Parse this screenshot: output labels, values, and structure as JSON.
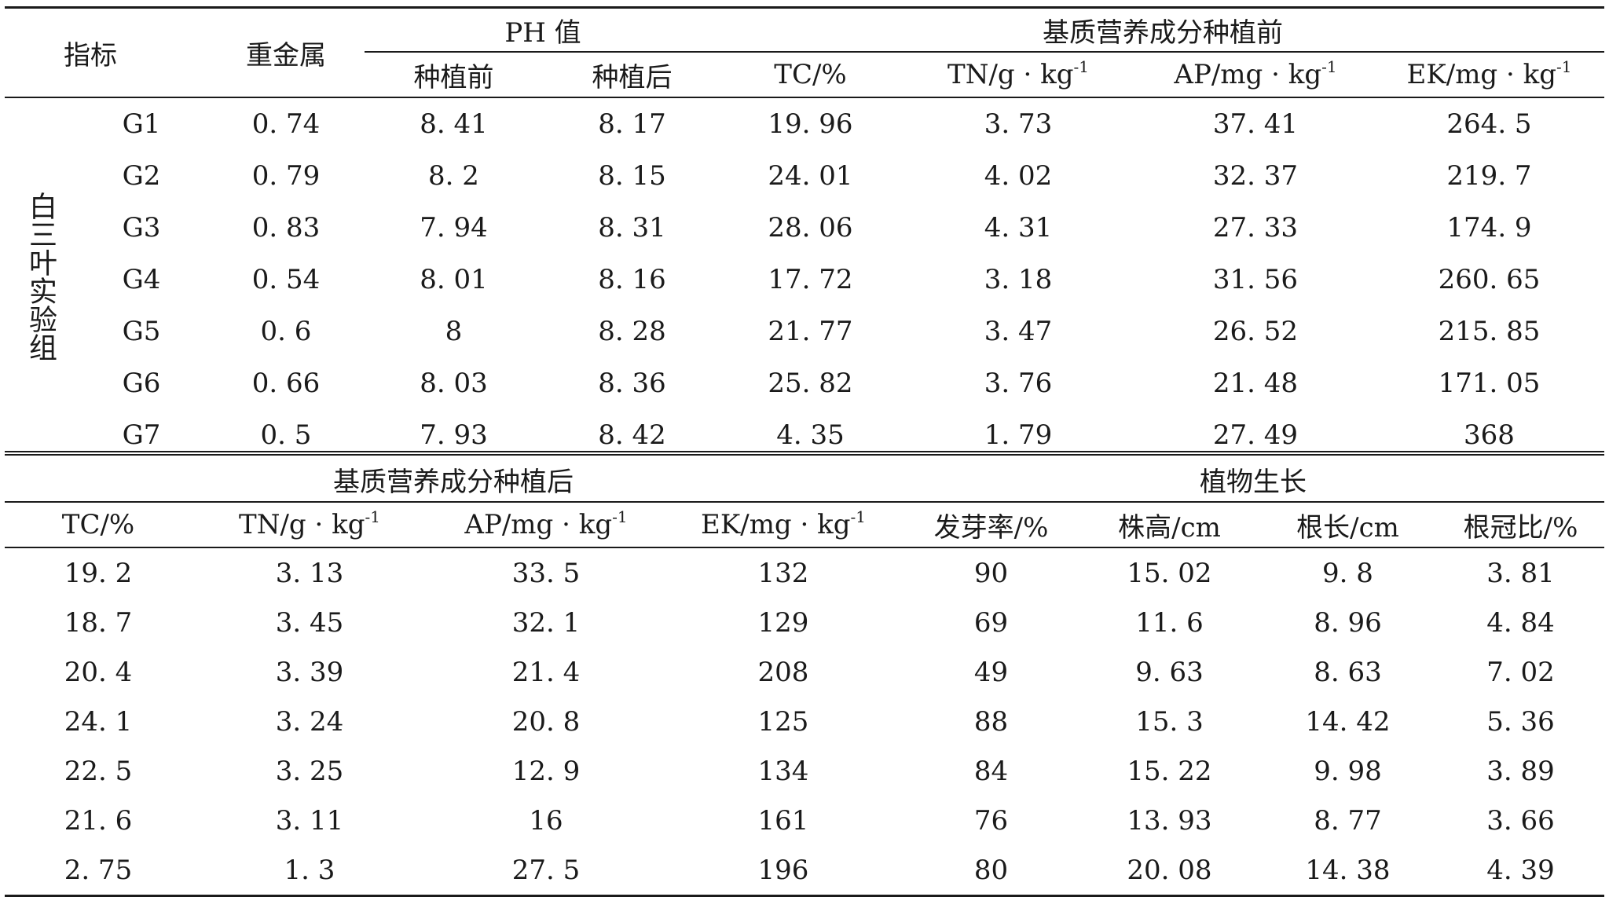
{
  "top": {
    "header": {
      "indicator": "指标",
      "heavy_metal": "重金属",
      "ph_group": "PH 值",
      "nutrients_before_group": "基质营养成分种植前",
      "ph_before": "种植前",
      "ph_after": "种植后",
      "tc": "TC/%",
      "tn": "TN/g · kg",
      "ap": "AP/mg · kg",
      "ek": "EK/mg · kg",
      "unit_sup": "-1"
    },
    "group_label": "白三叶实验组",
    "rows": [
      [
        "G1",
        "0. 74",
        "8. 41",
        "8. 17",
        "19. 96",
        "3. 73",
        "37. 41",
        "264. 5"
      ],
      [
        "G2",
        "0. 79",
        "8. 2",
        "8. 15",
        "24. 01",
        "4. 02",
        "32. 37",
        "219. 7"
      ],
      [
        "G3",
        "0. 83",
        "7. 94",
        "8. 31",
        "28. 06",
        "4. 31",
        "27. 33",
        "174. 9"
      ],
      [
        "G4",
        "0. 54",
        "8. 01",
        "8. 16",
        "17. 72",
        "3. 18",
        "31. 56",
        "260. 65"
      ],
      [
        "G5",
        "0. 6",
        "8",
        "8. 28",
        "21. 77",
        "3. 47",
        "26. 52",
        "215. 85"
      ],
      [
        "G6",
        "0. 66",
        "8. 03",
        "8. 36",
        "25. 82",
        "3. 76",
        "21. 48",
        "171. 05"
      ],
      [
        "G7",
        "0. 5",
        "7. 93",
        "8. 42",
        "4. 35",
        "1. 79",
        "27. 49",
        "368"
      ]
    ]
  },
  "bottom": {
    "header": {
      "nutrients_after_group": "基质营养成分种植后",
      "growth_group": "植物生长",
      "tc": "TC/%",
      "tn": "TN/g · kg",
      "ap": "AP/mg · kg",
      "ek": "EK/mg · kg",
      "unit_sup": "-1",
      "germination": "发芽率/%",
      "plant_height": "株高/cm",
      "root_length": "根长/cm",
      "root_shoot": "根冠比/%"
    },
    "rows": [
      [
        "19. 2",
        "3. 13",
        "33. 5",
        "132",
        "90",
        "15. 02",
        "9. 8",
        "3. 81"
      ],
      [
        "18. 7",
        "3. 45",
        "32. 1",
        "129",
        "69",
        "11. 6",
        "8. 96",
        "4. 84"
      ],
      [
        "20. 4",
        "3. 39",
        "21. 4",
        "208",
        "49",
        "9. 63",
        "8. 63",
        "7. 02"
      ],
      [
        "24. 1",
        "3. 24",
        "20. 8",
        "125",
        "88",
        "15. 3",
        "14. 42",
        "5. 36"
      ],
      [
        "22. 5",
        "3. 25",
        "12. 9",
        "134",
        "84",
        "15. 22",
        "9. 98",
        "3. 89"
      ],
      [
        "21. 6",
        "3. 11",
        "16",
        "161",
        "76",
        "13. 93",
        "8. 77",
        "3. 66"
      ],
      [
        "2. 75",
        "1. 3",
        "27. 5",
        "196",
        "80",
        "20. 08",
        "14. 38",
        "4. 39"
      ]
    ]
  }
}
